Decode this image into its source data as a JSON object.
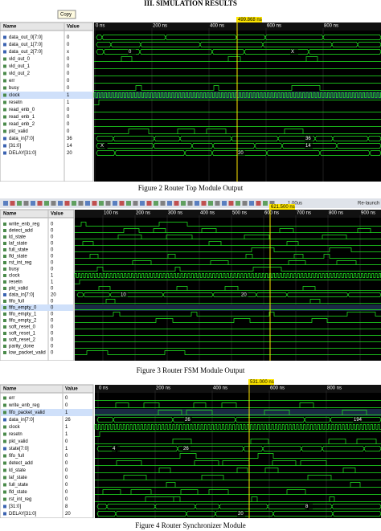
{
  "heading": "III. SIMULATION RESULTS",
  "figures": [
    {
      "caption": "Figure 2 Router Top Module Output",
      "tooltip": "Copy",
      "cursor_label": "499.868 ns",
      "columns": [
        "Name",
        "Value"
      ],
      "time_labels": [
        "0 ns",
        "200 ns",
        "400 ns",
        "600 ns",
        "800 ns"
      ],
      "signals": [
        {
          "name": "data_out_0[7:0]",
          "value": 0
        },
        {
          "name": "data_out_1[7:0]",
          "value": 0
        },
        {
          "name": "data_out_2[7:0]",
          "value": "x"
        },
        {
          "name": "vld_out_0",
          "value": 0
        },
        {
          "name": "vld_out_1",
          "value": 0
        },
        {
          "name": "vld_out_2",
          "value": 0
        },
        {
          "name": "err",
          "value": 0
        },
        {
          "name": "busy",
          "value": 0
        },
        {
          "name": "clock",
          "value": 1
        },
        {
          "name": "resetn",
          "value": 1
        },
        {
          "name": "read_enb_0",
          "value": 0
        },
        {
          "name": "read_enb_1",
          "value": 0
        },
        {
          "name": "read_enb_2",
          "value": 0
        },
        {
          "name": "pkt_valid",
          "value": 0
        },
        {
          "name": "data_in[7:0]",
          "value": 36
        },
        {
          "name": "[31:0]",
          "value": 14
        },
        {
          "name": "DELAY[31:0]",
          "value": 20
        }
      ],
      "wave_labels": [
        "0",
        "X",
        "36",
        "14",
        "X",
        "20"
      ]
    },
    {
      "caption": "Figure 3 Router FSM Module Output",
      "cursor_label": "621.500 ns",
      "toolbar": [
        "1.00us",
        "Re-launch"
      ],
      "columns": [
        "Name",
        "Value"
      ],
      "time_labels": [
        "100 ns",
        "200 ns",
        "300 ns",
        "400 ns",
        "500 ns",
        "600 ns",
        "700 ns",
        "800 ns",
        "900 ns"
      ],
      "signals": [
        {
          "name": "write_enb_reg",
          "value": 0
        },
        {
          "name": "detect_add",
          "value": 0
        },
        {
          "name": "ld_state",
          "value": 0
        },
        {
          "name": "laf_state",
          "value": 0
        },
        {
          "name": "full_state",
          "value": 0
        },
        {
          "name": "lfd_state",
          "value": 0
        },
        {
          "name": "rst_int_reg",
          "value": 0
        },
        {
          "name": "busy",
          "value": 0
        },
        {
          "name": "clock",
          "value": 1
        },
        {
          "name": "resetn",
          "value": 1
        },
        {
          "name": "pkt_valid",
          "value": 0
        },
        {
          "name": "data_in[7:0]",
          "value": 20
        },
        {
          "name": "fifo_full",
          "value": 0
        },
        {
          "name": "fifo_empty_0",
          "value": 0
        },
        {
          "name": "fifo_empty_1",
          "value": 0
        },
        {
          "name": "fifo_empty_2",
          "value": 0
        },
        {
          "name": "soft_reset_0",
          "value": 0
        },
        {
          "name": "soft_reset_1",
          "value": 0
        },
        {
          "name": "soft_reset_2",
          "value": 0
        },
        {
          "name": "parity_done",
          "value": 0
        },
        {
          "name": "low_packet_valid",
          "value": 0
        }
      ],
      "wave_labels": [
        "10",
        "20"
      ]
    },
    {
      "caption": "Figure 4  Router Synchronizer Module",
      "cursor_label": "531.000 ns",
      "columns": [
        "Name",
        "Value"
      ],
      "time_labels": [
        "0 ns",
        "200 ns",
        "400 ns",
        "600 ns",
        "800 ns"
      ],
      "signals": [
        {
          "name": "err",
          "value": 0
        },
        {
          "name": "write_enb_reg",
          "value": 0
        },
        {
          "name": "fifo_packet_valid",
          "value": 1
        },
        {
          "name": "data_in[7:0]",
          "value": 26
        },
        {
          "name": "clock",
          "value": 1
        },
        {
          "name": "resetn",
          "value": 1
        },
        {
          "name": "pkt_valid",
          "value": 0
        },
        {
          "name": "state[7:0]",
          "value": 1
        },
        {
          "name": "fifo_full",
          "value": 0
        },
        {
          "name": "detect_add",
          "value": 0
        },
        {
          "name": "ld_state",
          "value": 0
        },
        {
          "name": "laf_state",
          "value": 0
        },
        {
          "name": "full_state",
          "value": 0
        },
        {
          "name": "lfd_state",
          "value": 0
        },
        {
          "name": "rst_int_reg",
          "value": 0
        },
        {
          "name": "[31:0]",
          "value": 8
        },
        {
          "name": "DELAY[31:0]",
          "value": 20
        }
      ],
      "wave_labels": [
        "26",
        "194",
        "4",
        "26",
        "8",
        "20"
      ]
    }
  ]
}
